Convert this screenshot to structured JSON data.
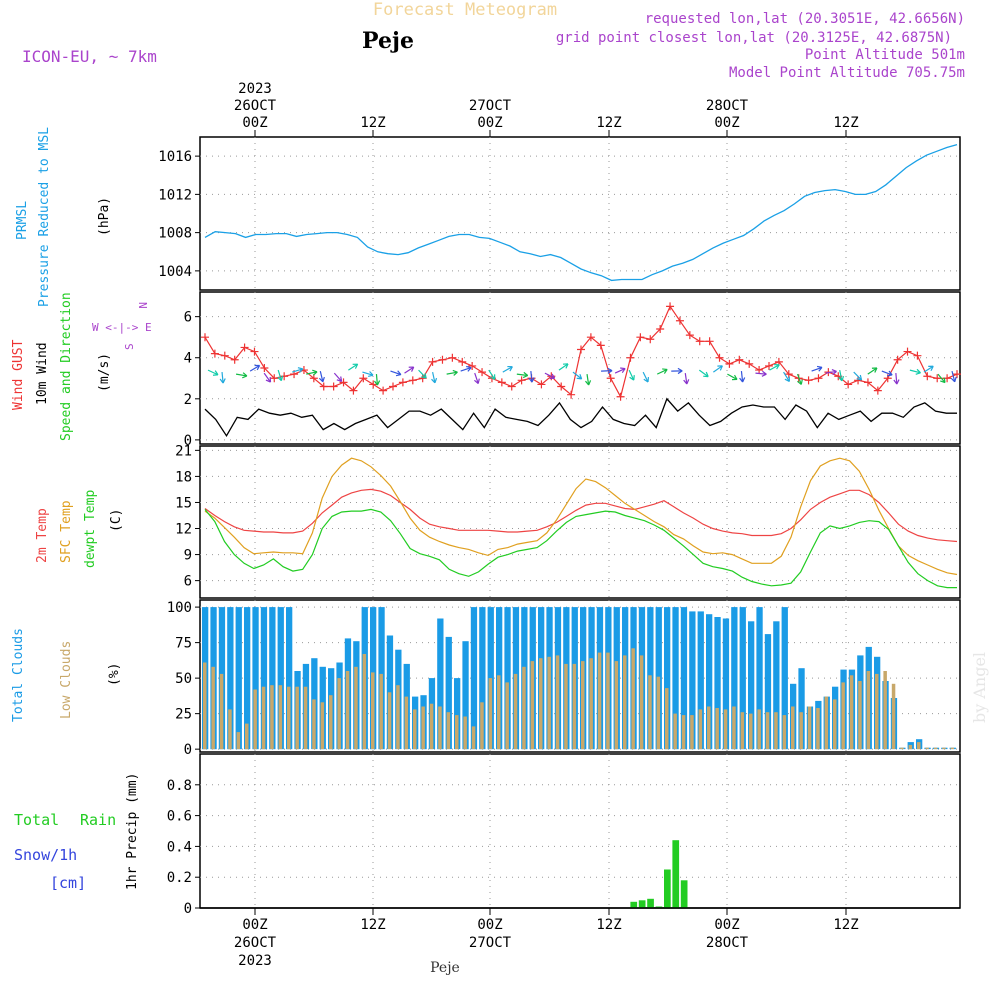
{
  "header": {
    "title": "Forecast Meteogram",
    "station": "Peje",
    "model": "ICON-EU, ~ 7km",
    "requested": "requested lon,lat (20.3051E, 42.6656N)",
    "gridpoint": "grid point closest lon,lat (20.3125E, 42.6875N)",
    "point_alt": "Point Altitude 501m",
    "model_alt": "Model Point Altitude 705.75m",
    "footer_station": "Peje",
    "watermark": "by Angel"
  },
  "time_axis": {
    "top_labels": [
      {
        "l1": "2023",
        "l2": "26OCT",
        "l3": "00Z"
      },
      {
        "l1": "",
        "l2": "",
        "l3": "12Z"
      },
      {
        "l1": "",
        "l2": "27OCT",
        "l3": "00Z"
      },
      {
        "l1": "",
        "l2": "",
        "l3": "12Z"
      },
      {
        "l1": "",
        "l2": "28OCT",
        "l3": "00Z"
      },
      {
        "l1": "",
        "l2": "",
        "l3": "12Z"
      }
    ],
    "bottom_labels": [
      {
        "l1": "00Z",
        "l2": "26OCT",
        "l3": "2023"
      },
      {
        "l1": "12Z",
        "l2": "",
        "l3": ""
      },
      {
        "l1": "00Z",
        "l2": "27OCT",
        "l3": ""
      },
      {
        "l1": "12Z",
        "l2": "",
        "l3": ""
      },
      {
        "l1": "00Z",
        "l2": "28OCT",
        "l3": ""
      },
      {
        "l1": "12Z",
        "l2": "",
        "l3": ""
      }
    ]
  },
  "panel_labels": {
    "pressure": {
      "a": "PRMSL",
      "b": "Pressure Reduced to MSL",
      "unit": "(hPa)"
    },
    "wind": {
      "a": "Wind GUST",
      "b": "10m Wind",
      "c": "Speed and Direction",
      "unit": "(m/s)",
      "compass_w": "W <-|-> E",
      "compass_n": "N",
      "compass_s": "S"
    },
    "temp": {
      "a": "2m Temp",
      "b": "SFC Temp",
      "c": "dewpt Temp",
      "unit": "(C)"
    },
    "clouds": {
      "a": "Total Clouds",
      "b": "Low Clouds",
      "unit": "(%)"
    },
    "precip": {
      "a": "Total",
      "b": "Rain",
      "c": "Snow/1h",
      "d": "[cm]",
      "unit": "1hr Precip (mm)"
    }
  },
  "colors": {
    "pressure": "#1aa0e6",
    "gust": "#ee3333",
    "wind": "#000000",
    "arrow": "#11ccaa",
    "t2m": "#ee4444",
    "tsfc": "#e0a020",
    "dewpt": "#22cc22",
    "total_clouds": "#1a9be6",
    "low_clouds": "#c8a86a",
    "rain": "#22cc22",
    "snow": "#3344dd",
    "purple": "#aa44cc"
  },
  "chart_data": [
    {
      "type": "line",
      "title": "PRMSL Pressure Reduced to MSL",
      "ylabel": "hPa",
      "ylim": [
        1002,
        1018
      ],
      "yticks": [
        1004,
        1008,
        1012,
        1016
      ],
      "series": [
        {
          "name": "PRMSL",
          "values": [
            1007.5,
            1008.1,
            1008.0,
            1007.9,
            1007.5,
            1007.8,
            1007.8,
            1007.9,
            1007.9,
            1007.6,
            1007.8,
            1007.9,
            1008.0,
            1008.0,
            1007.8,
            1007.5,
            1006.5,
            1006.0,
            1005.8,
            1005.7,
            1005.9,
            1006.4,
            1006.8,
            1007.2,
            1007.6,
            1007.8,
            1007.8,
            1007.5,
            1007.4,
            1007.0,
            1006.6,
            1006.0,
            1005.8,
            1005.5,
            1005.7,
            1005.4,
            1004.8,
            1004.2,
            1003.8,
            1003.5,
            1003.0,
            1003.1,
            1003.1,
            1003.1,
            1003.6,
            1004.0,
            1004.5,
            1004.8,
            1005.2,
            1005.8,
            1006.4,
            1006.9,
            1007.3,
            1007.7,
            1008.4,
            1009.2,
            1009.8,
            1010.3,
            1011.0,
            1011.8,
            1012.2,
            1012.4,
            1012.5,
            1012.3,
            1012.0,
            1012.0,
            1012.3,
            1013.0,
            1013.9,
            1014.8,
            1015.5,
            1016.1,
            1016.5,
            1016.9,
            1017.2
          ]
        }
      ]
    },
    {
      "type": "line",
      "title": "Wind GUST / 10m Wind Speed and Direction",
      "ylabel": "m/s",
      "ylim": [
        -0.2,
        7.2
      ],
      "yticks": [
        0,
        2,
        4,
        6
      ],
      "series": [
        {
          "name": "Wind GUST",
          "values": [
            5.0,
            4.2,
            4.1,
            3.9,
            4.5,
            4.3,
            3.5,
            3.0,
            3.1,
            3.2,
            3.4,
            3.0,
            2.6,
            2.6,
            2.8,
            2.4,
            3.0,
            2.7,
            2.4,
            2.6,
            2.8,
            2.9,
            3.0,
            3.8,
            3.9,
            4.0,
            3.8,
            3.6,
            3.3,
            3.0,
            2.8,
            2.6,
            2.9,
            3.0,
            2.7,
            3.1,
            2.6,
            2.2,
            4.4,
            5.0,
            4.6,
            3.0,
            2.1,
            4.0,
            5.0,
            4.9,
            5.4,
            6.5,
            5.8,
            5.1,
            4.8,
            4.8,
            4.0,
            3.7,
            3.9,
            3.7,
            3.4,
            3.6,
            3.8,
            3.2,
            3.0,
            2.9,
            3.0,
            3.3,
            3.1,
            2.7,
            2.9,
            2.8,
            2.4,
            3.0,
            3.9,
            4.3,
            4.1,
            3.1,
            3.0,
            3.0,
            3.2
          ]
        },
        {
          "name": "10m Wind",
          "values": [
            1.5,
            1.0,
            0.2,
            1.1,
            1.0,
            1.5,
            1.3,
            1.2,
            1.3,
            1.1,
            1.2,
            0.5,
            0.8,
            0.5,
            0.8,
            1.0,
            1.2,
            0.6,
            1.0,
            1.4,
            1.4,
            1.2,
            1.5,
            1.0,
            0.5,
            1.3,
            0.6,
            1.5,
            1.1,
            1.0,
            0.9,
            0.7,
            1.2,
            1.8,
            1.0,
            0.6,
            0.9,
            1.6,
            1.0,
            0.8,
            0.7,
            1.2,
            0.6,
            2.0,
            1.4,
            1.8,
            1.2,
            0.7,
            0.9,
            1.3,
            1.6,
            1.7,
            1.6,
            1.6,
            1.0,
            1.7,
            1.4,
            0.6,
            1.3,
            1.0,
            1.2,
            1.4,
            0.9,
            1.3,
            1.3,
            1.1,
            1.6,
            1.8,
            1.4,
            1.3,
            1.3
          ]
        }
      ]
    },
    {
      "type": "line",
      "title": "2m Temp / SFC Temp / dewpt Temp",
      "ylabel": "C",
      "ylim": [
        4,
        21.5
      ],
      "yticks": [
        6,
        9,
        12,
        15,
        18,
        21
      ],
      "series": [
        {
          "name": "2m Temp",
          "values": [
            14.3,
            13.5,
            12.8,
            12.2,
            11.8,
            11.7,
            11.6,
            11.6,
            11.5,
            11.5,
            11.7,
            12.6,
            13.8,
            14.7,
            15.6,
            16.1,
            16.4,
            16.5,
            16.3,
            15.8,
            15.0,
            14.2,
            13.2,
            12.5,
            12.2,
            12.0,
            11.8,
            11.8,
            11.8,
            11.8,
            11.7,
            11.6,
            11.6,
            11.7,
            11.8,
            12.2,
            12.7,
            13.4,
            14.1,
            14.7,
            14.9,
            14.9,
            14.6,
            14.3,
            14.2,
            14.5,
            14.8,
            15.2,
            14.5,
            13.8,
            13.2,
            12.5,
            12.0,
            11.7,
            11.5,
            11.4,
            11.2,
            11.2,
            11.2,
            11.4,
            12.0,
            13.0,
            14.2,
            15.0,
            15.6,
            16.0,
            16.4,
            16.4,
            15.9,
            15.0,
            13.8,
            12.5,
            11.7,
            11.2,
            10.9,
            10.7,
            10.6,
            10.5
          ]
        },
        {
          "name": "SFC Temp",
          "values": [
            14.0,
            13.2,
            12.1,
            11.0,
            9.8,
            9.1,
            9.2,
            9.3,
            9.2,
            9.2,
            9.1,
            11.5,
            15.5,
            18.0,
            19.3,
            20.1,
            19.8,
            19.1,
            18.1,
            16.9,
            15.1,
            13.2,
            11.8,
            11.0,
            10.5,
            10.1,
            9.8,
            9.6,
            9.2,
            8.9,
            9.6,
            9.8,
            10.2,
            10.4,
            10.6,
            11.5,
            13.0,
            14.8,
            16.6,
            17.7,
            17.4,
            16.7,
            15.8,
            14.9,
            14.2,
            13.5,
            12.8,
            12.2,
            11.3,
            10.8,
            10.0,
            9.3,
            9.1,
            9.2,
            9.0,
            8.5,
            8.0,
            8.0,
            8.0,
            8.8,
            11.0,
            14.5,
            17.5,
            19.2,
            19.8,
            20.1,
            19.8,
            18.6,
            16.5,
            14.1,
            12.0,
            10.0,
            8.9,
            8.3,
            7.8,
            7.3,
            6.9,
            6.7
          ]
        },
        {
          "name": "dewpt Temp",
          "values": [
            14.2,
            12.8,
            10.5,
            9.0,
            8.0,
            7.4,
            7.8,
            8.5,
            7.6,
            7.1,
            7.3,
            9.0,
            12.0,
            13.4,
            13.9,
            14.0,
            14.0,
            14.2,
            13.9,
            12.9,
            11.4,
            9.7,
            9.1,
            8.8,
            8.4,
            7.3,
            6.8,
            6.5,
            7.0,
            7.9,
            8.7,
            9.0,
            9.4,
            9.6,
            9.8,
            10.6,
            11.7,
            12.7,
            13.4,
            13.6,
            13.8,
            14.0,
            13.9,
            13.5,
            13.2,
            12.9,
            12.4,
            11.8,
            10.9,
            10.0,
            9.0,
            8.0,
            7.6,
            7.4,
            7.1,
            6.4,
            5.9,
            5.6,
            5.4,
            5.5,
            5.7,
            7.0,
            9.3,
            11.5,
            12.3,
            12.0,
            12.3,
            12.7,
            12.9,
            12.8,
            11.9,
            10.0,
            8.1,
            6.8,
            6.0,
            5.4,
            5.2,
            5.2
          ]
        }
      ]
    },
    {
      "type": "bar",
      "title": "Total Clouds / Low Clouds",
      "ylabel": "%",
      "ylim": [
        -2,
        105
      ],
      "yticks": [
        0,
        25,
        50,
        75,
        100
      ],
      "series": [
        {
          "name": "Total Clouds",
          "values": [
            100,
            100,
            100,
            100,
            100,
            100,
            100,
            100,
            100,
            100,
            100,
            55,
            60,
            64,
            58,
            57,
            61,
            78,
            76,
            100,
            100,
            100,
            80,
            70,
            60,
            37,
            38,
            50,
            92,
            79,
            50,
            76,
            100,
            100,
            100,
            100,
            100,
            100,
            100,
            100,
            100,
            100,
            100,
            100,
            100,
            100,
            100,
            100,
            100,
            100,
            100,
            100,
            100,
            100,
            100,
            100,
            100,
            100,
            97,
            97,
            95,
            93,
            92,
            100,
            100,
            90,
            100,
            81,
            90,
            100,
            46,
            57,
            30,
            34,
            37,
            44,
            56,
            56,
            66,
            72,
            65,
            48,
            36,
            1,
            5,
            7,
            1,
            1,
            1,
            1
          ]
        },
        {
          "name": "Low Clouds",
          "values": [
            61,
            58,
            53,
            28,
            12,
            18,
            42,
            44,
            45,
            45,
            44,
            44,
            44,
            35,
            33,
            38,
            50,
            55,
            58,
            67,
            54,
            53,
            40,
            45,
            37,
            28,
            30,
            32,
            30,
            26,
            24,
            23,
            16,
            33,
            50,
            52,
            47,
            53,
            58,
            62,
            64,
            65,
            66,
            60,
            60,
            62,
            64,
            68,
            68,
            62,
            66,
            71,
            66,
            52,
            51,
            43,
            25,
            24,
            24,
            28,
            30,
            29,
            28,
            30,
            26,
            25,
            28,
            26,
            26,
            24,
            30,
            26,
            30,
            29,
            37,
            35,
            47,
            52,
            48,
            55,
            53,
            55,
            46,
            1,
            3,
            5,
            1,
            1,
            1,
            1
          ]
        }
      ]
    },
    {
      "type": "bar",
      "title": "1hr Precip",
      "ylabel": "mm",
      "ylim": [
        0,
        1.0
      ],
      "yticks": [
        0,
        0.2,
        0.4,
        0.6,
        0.8
      ],
      "series": [
        {
          "name": "Total Rain",
          "values": [
            0,
            0,
            0,
            0,
            0,
            0,
            0,
            0,
            0,
            0,
            0,
            0,
            0,
            0,
            0,
            0,
            0,
            0,
            0,
            0,
            0,
            0,
            0,
            0,
            0,
            0,
            0,
            0,
            0,
            0,
            0,
            0,
            0,
            0,
            0,
            0,
            0,
            0,
            0,
            0,
            0,
            0,
            0,
            0,
            0,
            0,
            0,
            0,
            0,
            0,
            0,
            0.04,
            0.05,
            0.06,
            0.01,
            0.25,
            0.44,
            0.18,
            0,
            0,
            0,
            0,
            0,
            0,
            0,
            0,
            0,
            0,
            0,
            0,
            0,
            0,
            0,
            0,
            0,
            0,
            0,
            0,
            0,
            0,
            0,
            0,
            0,
            0,
            0,
            0,
            0,
            0,
            0,
            0
          ]
        },
        {
          "name": "Snow/1h",
          "values": [
            0,
            0,
            0,
            0,
            0,
            0,
            0,
            0,
            0,
            0,
            0,
            0,
            0,
            0,
            0,
            0,
            0,
            0,
            0,
            0,
            0,
            0,
            0,
            0,
            0,
            0,
            0,
            0,
            0,
            0,
            0,
            0,
            0,
            0,
            0,
            0,
            0,
            0,
            0,
            0,
            0,
            0,
            0,
            0,
            0,
            0,
            0,
            0,
            0,
            0,
            0,
            0,
            0,
            0,
            0,
            0,
            0,
            0,
            0,
            0,
            0,
            0,
            0,
            0,
            0,
            0,
            0,
            0,
            0,
            0,
            0,
            0,
            0,
            0,
            0,
            0,
            0,
            0,
            0,
            0,
            0,
            0,
            0,
            0,
            0,
            0,
            0,
            0,
            0,
            0
          ]
        }
      ]
    }
  ]
}
